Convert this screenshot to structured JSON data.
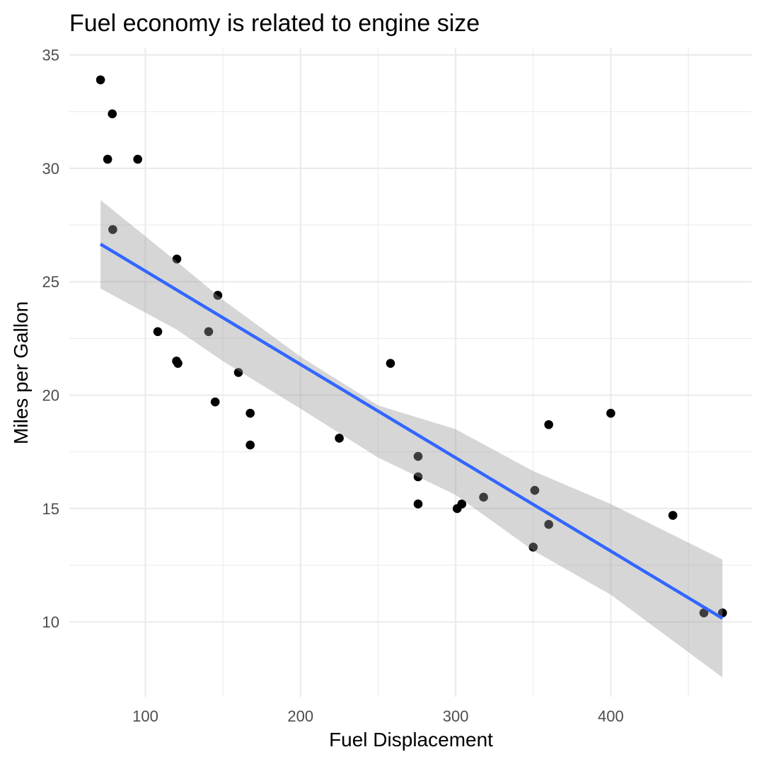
{
  "chart_data": {
    "type": "scatter",
    "title": "Fuel economy is related to engine size",
    "xlabel": "Fuel Displacement",
    "ylabel": "Miles per Gallon",
    "xlim": [
      51.0,
      491.0
    ],
    "ylim": [
      6.7,
      35.3
    ],
    "x_ticks": [
      100,
      200,
      300,
      400
    ],
    "x_minor_ticks": [
      150,
      250,
      350,
      450
    ],
    "y_ticks": [
      10,
      15,
      20,
      25,
      30,
      35
    ],
    "y_minor_ticks": [
      12.5,
      17.5,
      22.5,
      27.5,
      32.5
    ],
    "grid": true,
    "legend": "none",
    "colors": {
      "points": "#000000",
      "fit_line": "#3366ff",
      "ribbon": "#999999",
      "grid": "#ebebeb"
    },
    "series": [
      {
        "type": "scatter",
        "x": [
          71.1,
          78.7,
          75.7,
          95.1,
          79.0,
          120.3,
          146.7,
          108.0,
          140.8,
          120.1,
          121.0,
          160.0,
          145.0,
          167.6,
          167.6,
          225.0,
          258.0,
          275.8,
          275.8,
          275.8,
          301.0,
          304.0,
          318.0,
          350.0,
          351.0,
          360.0,
          360.0,
          400.0,
          440.0,
          460.0,
          472.0
        ],
        "y": [
          33.9,
          32.4,
          30.4,
          30.4,
          27.3,
          26.0,
          24.4,
          22.8,
          22.8,
          21.5,
          21.4,
          21.0,
          19.7,
          19.2,
          17.8,
          18.1,
          21.4,
          17.3,
          16.4,
          15.2,
          15.0,
          15.2,
          15.5,
          13.3,
          15.8,
          18.7,
          14.3,
          19.2,
          14.7,
          10.4,
          10.4
        ]
      },
      {
        "type": "line",
        "x": [
          71.1,
          472.0
        ],
        "y": [
          26.66,
          10.16
        ]
      },
      {
        "type": "area",
        "x": [
          71.1,
          120,
          150,
          200,
          250,
          300,
          350,
          400,
          472
        ],
        "upper": [
          28.6,
          25.9,
          24.2,
          21.7,
          19.55,
          18.5,
          16.65,
          15.2,
          12.75
        ],
        "lower": [
          24.7,
          22.9,
          21.5,
          19.4,
          17.25,
          15.6,
          13.15,
          11.2,
          7.55
        ]
      }
    ]
  }
}
